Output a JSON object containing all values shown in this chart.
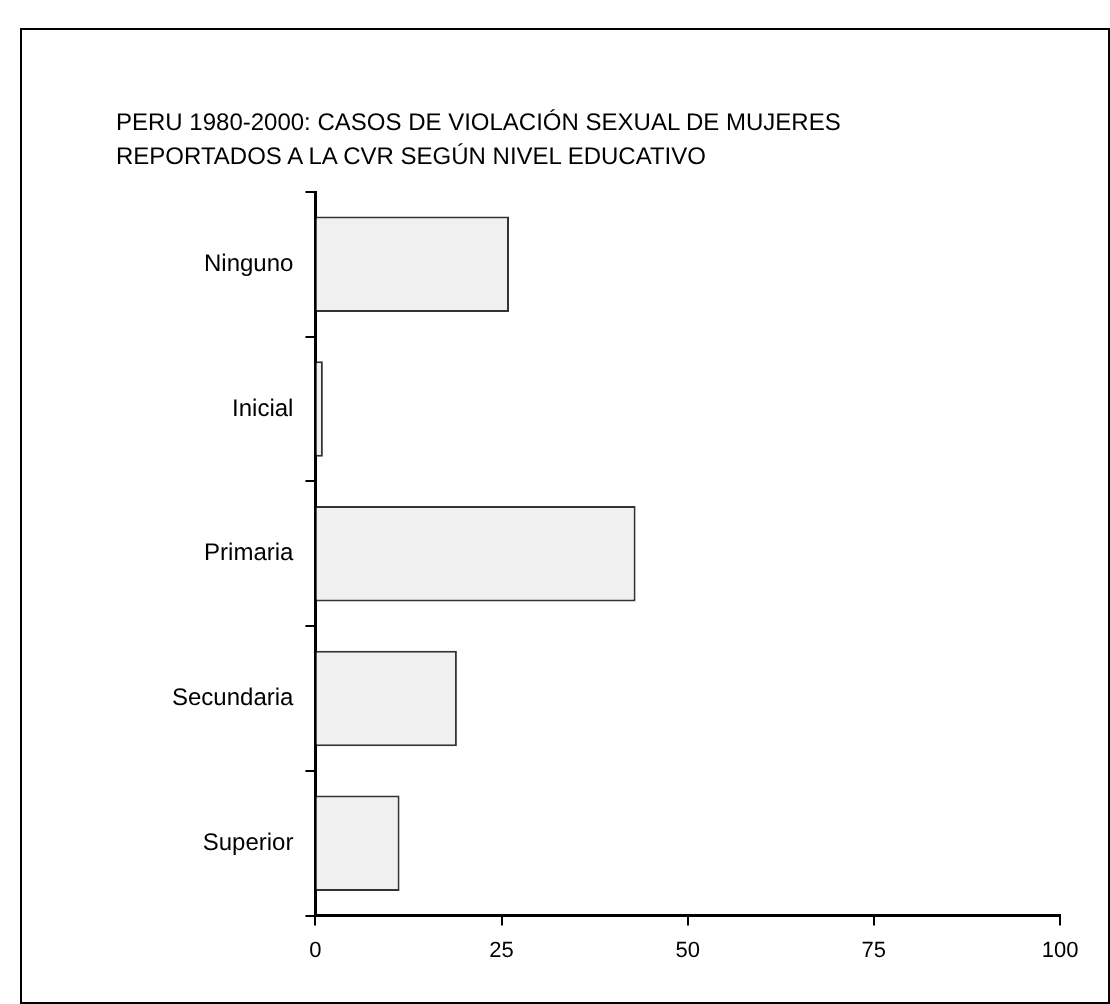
{
  "chart_data": {
    "type": "bar",
    "orientation": "horizontal",
    "title": "PERU 1980-2000: CASOS DE VIOLACIÓN SEXUAL DE MUJERES REPORTADOS A LA CVR SEGÚN NIVEL EDUCATIVO",
    "categories": [
      "Ninguno",
      "Inicial",
      "Primaria",
      "Secundaria",
      "Superior"
    ],
    "values": [
      26,
      1,
      43,
      19,
      11.3
    ],
    "color": "#f0f0f0",
    "xlim": [
      0,
      100
    ],
    "xticks": [
      0,
      25,
      50,
      75,
      100
    ],
    "grid": false,
    "legend": false
  }
}
